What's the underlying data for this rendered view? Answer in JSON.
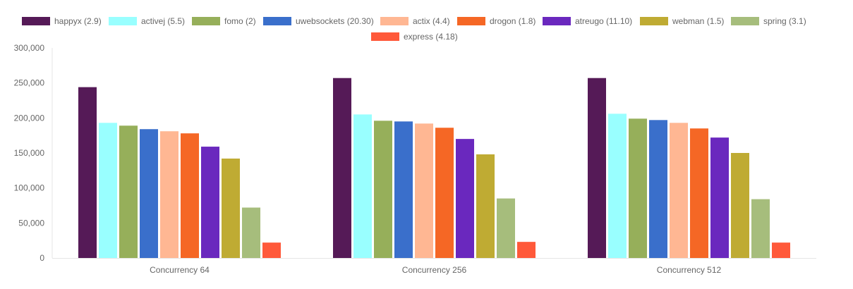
{
  "chart_data": {
    "type": "bar",
    "categories": [
      "Concurrency 64",
      "Concurrency 256",
      "Concurrency 512"
    ],
    "ylim": [
      0,
      300000
    ],
    "y_ticks": [
      0,
      50000,
      100000,
      150000,
      200000,
      250000,
      300000
    ],
    "y_tick_labels": [
      "0",
      "50,000",
      "100,000",
      "150,000",
      "200,000",
      "250,000",
      "300,000"
    ],
    "legend_position": "top",
    "grid": false,
    "series": [
      {
        "name": "happyx (2.9)",
        "color": "#551a57",
        "values": [
          244000,
          257000,
          257000
        ]
      },
      {
        "name": "activej (5.5)",
        "color": "#99ffff",
        "values": [
          193000,
          205000,
          206000
        ]
      },
      {
        "name": "fomo (2)",
        "color": "#96af5a",
        "values": [
          189000,
          196000,
          199000
        ]
      },
      {
        "name": "uwebsockets (20.30)",
        "color": "#3a6fcb",
        "values": [
          184000,
          195000,
          197000
        ]
      },
      {
        "name": "actix (4.4)",
        "color": "#ffb793",
        "values": [
          181000,
          192000,
          193000
        ]
      },
      {
        "name": "drogon (1.8)",
        "color": "#f56725",
        "values": [
          178000,
          186000,
          185000
        ]
      },
      {
        "name": "atreugo (11.10)",
        "color": "#6a28be",
        "values": [
          159000,
          170000,
          172000
        ]
      },
      {
        "name": "webman (1.5)",
        "color": "#bfab33",
        "values": [
          142000,
          148000,
          150000
        ]
      },
      {
        "name": "spring (3.1)",
        "color": "#a6bd7c",
        "values": [
          72000,
          85000,
          84000
        ]
      },
      {
        "name": "express (4.18)",
        "color": "#ff593a",
        "values": [
          22000,
          23000,
          22000
        ]
      }
    ]
  }
}
